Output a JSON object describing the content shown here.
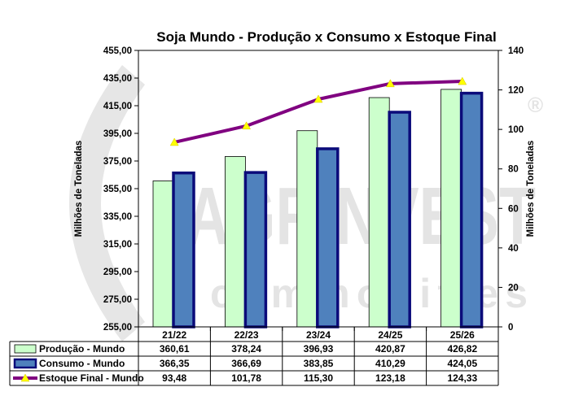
{
  "watermark": {
    "brand": "AGRINVEST",
    "sub": "commodities",
    "reg": "®"
  },
  "chart_data": {
    "type": "bar",
    "title": "Soja Mundo - Produção x Consumo x Estoque Final",
    "categories": [
      "21/22",
      "22/23",
      "23/24",
      "24/25",
      "25/26"
    ],
    "ylabel": "Milhões de Toneladas",
    "y2label": "Milhões de Toneladas",
    "ylim": [
      255,
      455
    ],
    "y2lim": [
      0,
      140
    ],
    "yticks": [
      "255,00",
      "275,00",
      "295,00",
      "315,00",
      "335,00",
      "355,00",
      "375,00",
      "395,00",
      "415,00",
      "435,00",
      "455,00"
    ],
    "y2ticks": [
      "0",
      "20",
      "40",
      "60",
      "80",
      "100",
      "120",
      "140"
    ],
    "series": [
      {
        "name": "Produção - Mundo",
        "type": "bar",
        "axis": "left",
        "color": "#ccffcc",
        "values": [
          360.61,
          378.24,
          396.93,
          420.87,
          426.82
        ],
        "labels": [
          "360,61",
          "378,24",
          "396,93",
          "420,87",
          "426,82"
        ]
      },
      {
        "name": "Consumo - Mundo",
        "type": "bar",
        "axis": "left",
        "color": "#4f81bd",
        "values": [
          366.35,
          366.69,
          383.85,
          410.29,
          424.05
        ],
        "labels": [
          "366,35",
          "366,69",
          "383,85",
          "410,29",
          "424,05"
        ]
      },
      {
        "name": "Estoque Final - Mundo",
        "type": "line",
        "axis": "right",
        "color": "#800080",
        "values": [
          93.48,
          101.78,
          115.3,
          123.18,
          124.33
        ],
        "labels": [
          "93,48",
          "101,78",
          "115,30",
          "123,18",
          "124,33"
        ]
      }
    ]
  }
}
